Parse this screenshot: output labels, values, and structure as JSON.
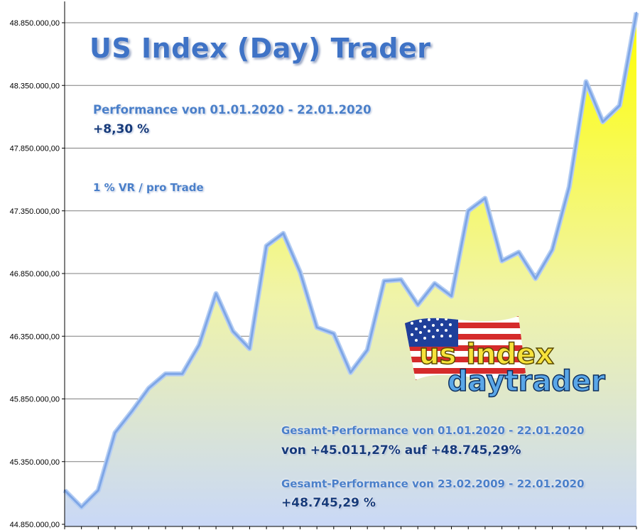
{
  "overlay": {
    "title": "US Index (Day) Trader",
    "performance_period": "Performance  von  01.01.2020 - 22.01.2020",
    "performance_value": "+8,30 %",
    "risk_label": "1 % VR / pro Trade",
    "total_performance_1_period": "Gesamt-Performance  von  01.01.2020 - 22.01.2020",
    "total_performance_1_value": "von +45.011,27% auf  +48.745,29%",
    "total_performance_2_period": "Gesamt-Performance  von  23.02.2009 - 22.01.2020",
    "total_performance_2_value": "+48.745,29 %"
  },
  "logo": {
    "line1": "us index",
    "line2": "daytrader"
  },
  "chart_data": {
    "type": "area",
    "title": "",
    "xlabel": "",
    "ylabel": "",
    "ylim": [
      44850000,
      48950000
    ],
    "yticks": [
      44850000,
      45350000,
      45850000,
      46350000,
      46850000,
      47350000,
      47850000,
      48350000,
      48850000
    ],
    "ytick_labels": [
      "44.850.000,00",
      "45.350.000,00",
      "45.850.000,00",
      "46.350.000,00",
      "46.850.000,00",
      "47.350.000,00",
      "47.850.000,00",
      "48.350.000,00",
      "48.850.000,00"
    ],
    "grid": true,
    "series": [
      {
        "values": [
          45121000,
          44986000,
          45121000,
          45580000,
          45750000,
          45935000,
          46050000,
          46050000,
          46280000,
          46690000,
          46390000,
          46250000,
          47070000,
          47170000,
          46860000,
          46420000,
          46370000,
          46060000,
          46240000,
          46790000,
          46800000,
          46600000,
          46770000,
          46670000,
          47350000,
          47450000,
          46950000,
          47020000,
          46810000,
          47040000,
          47540000,
          48380000,
          48060000,
          48190000,
          48930000
        ]
      }
    ],
    "colors": {
      "fill_top": "#ffff00",
      "fill_bottom": "#ccdaf8",
      "line": "#7ea6e6",
      "line_glow": "#a9c6f2",
      "grid": "#7f7f7f"
    }
  }
}
